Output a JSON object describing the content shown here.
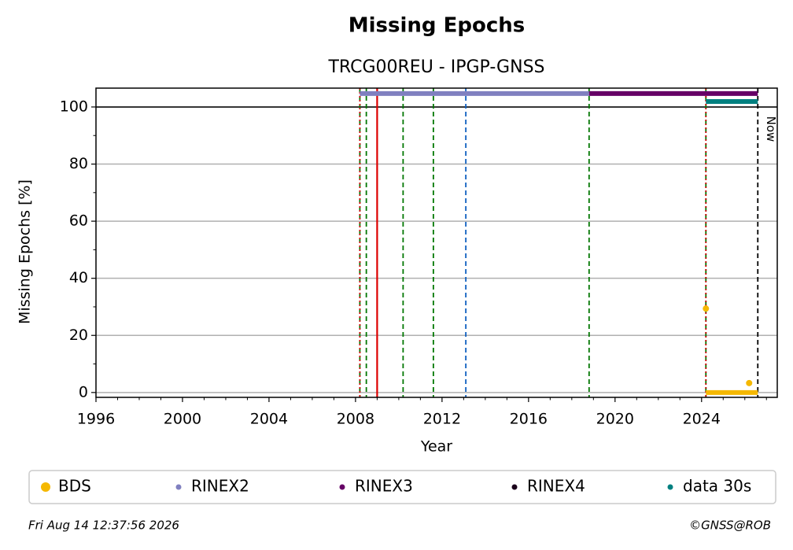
{
  "chart_data": {
    "type": "line",
    "title": "Missing Epochs",
    "subtitle": "TRCG00REU - IPGP-GNSS",
    "x_label": "Year",
    "y_label": "Missing Epochs [%]",
    "xlim": [
      1996,
      2027.5
    ],
    "ylim": [
      -1.7,
      106.6
    ],
    "xticks": [
      1996,
      2000,
      2004,
      2008,
      2012,
      2016,
      2020,
      2024
    ],
    "xminorticks": [
      1997,
      1998,
      1999,
      2001,
      2002,
      2003,
      2005,
      2006,
      2007,
      2009,
      2010,
      2011,
      2013,
      2014,
      2015,
      2017,
      2018,
      2019,
      2021,
      2022,
      2023,
      2025,
      2026,
      2027
    ],
    "yticks": [
      0,
      20,
      40,
      60,
      80,
      100
    ],
    "yminorticks": [
      10,
      30,
      50,
      70,
      90
    ],
    "grid": true,
    "hline": 100,
    "vlines": [
      {
        "x": 2008.2,
        "color": "#007700",
        "style": "dashed"
      },
      {
        "x": 2008.2,
        "color": "#cc0000",
        "style": "dotted"
      },
      {
        "x": 2008.5,
        "color": "#007700",
        "style": "dashed"
      },
      {
        "x": 2009.0,
        "color": "#dd0000",
        "style": "solid"
      },
      {
        "x": 2010.2,
        "color": "#007700",
        "style": "dashed"
      },
      {
        "x": 2011.6,
        "color": "#007700",
        "style": "dashed"
      },
      {
        "x": 2013.1,
        "color": "#1060c0",
        "style": "dashed"
      },
      {
        "x": 2018.8,
        "color": "#007700",
        "style": "dashed"
      },
      {
        "x": 2024.2,
        "color": "#007700",
        "style": "dashed"
      },
      {
        "x": 2024.2,
        "color": "#cc0000",
        "style": "dotted"
      },
      {
        "x": 2026.6,
        "color": "#000000",
        "style": "dashed",
        "label": "Now"
      }
    ],
    "series": [
      {
        "name": "BDS",
        "color": "#f5b800",
        "x": [
          2024.2,
          null,
          2024.2,
          2026.6,
          null,
          2026.2
        ],
        "values": [
          29.4,
          null,
          0,
          0,
          null,
          3.3
        ]
      },
      {
        "name": "RINEX2",
        "color": "#8080c0",
        "x": [
          2008.2,
          2018.8
        ],
        "values": [
          104.7,
          104.7
        ]
      },
      {
        "name": "RINEX3",
        "color": "#660066",
        "x": [
          2018.8,
          2026.6
        ],
        "values": [
          104.7,
          104.7
        ]
      },
      {
        "name": "RINEX4",
        "color": "#1a001a",
        "x": [],
        "values": []
      },
      {
        "name": "data 30s",
        "color": "#008080",
        "x": [
          2024.2,
          2026.6
        ],
        "values": [
          101.9,
          101.9
        ]
      }
    ],
    "footer_left": "Fri Aug 14 12:37:56 2026",
    "footer_right": "©GNSS@ROB"
  }
}
